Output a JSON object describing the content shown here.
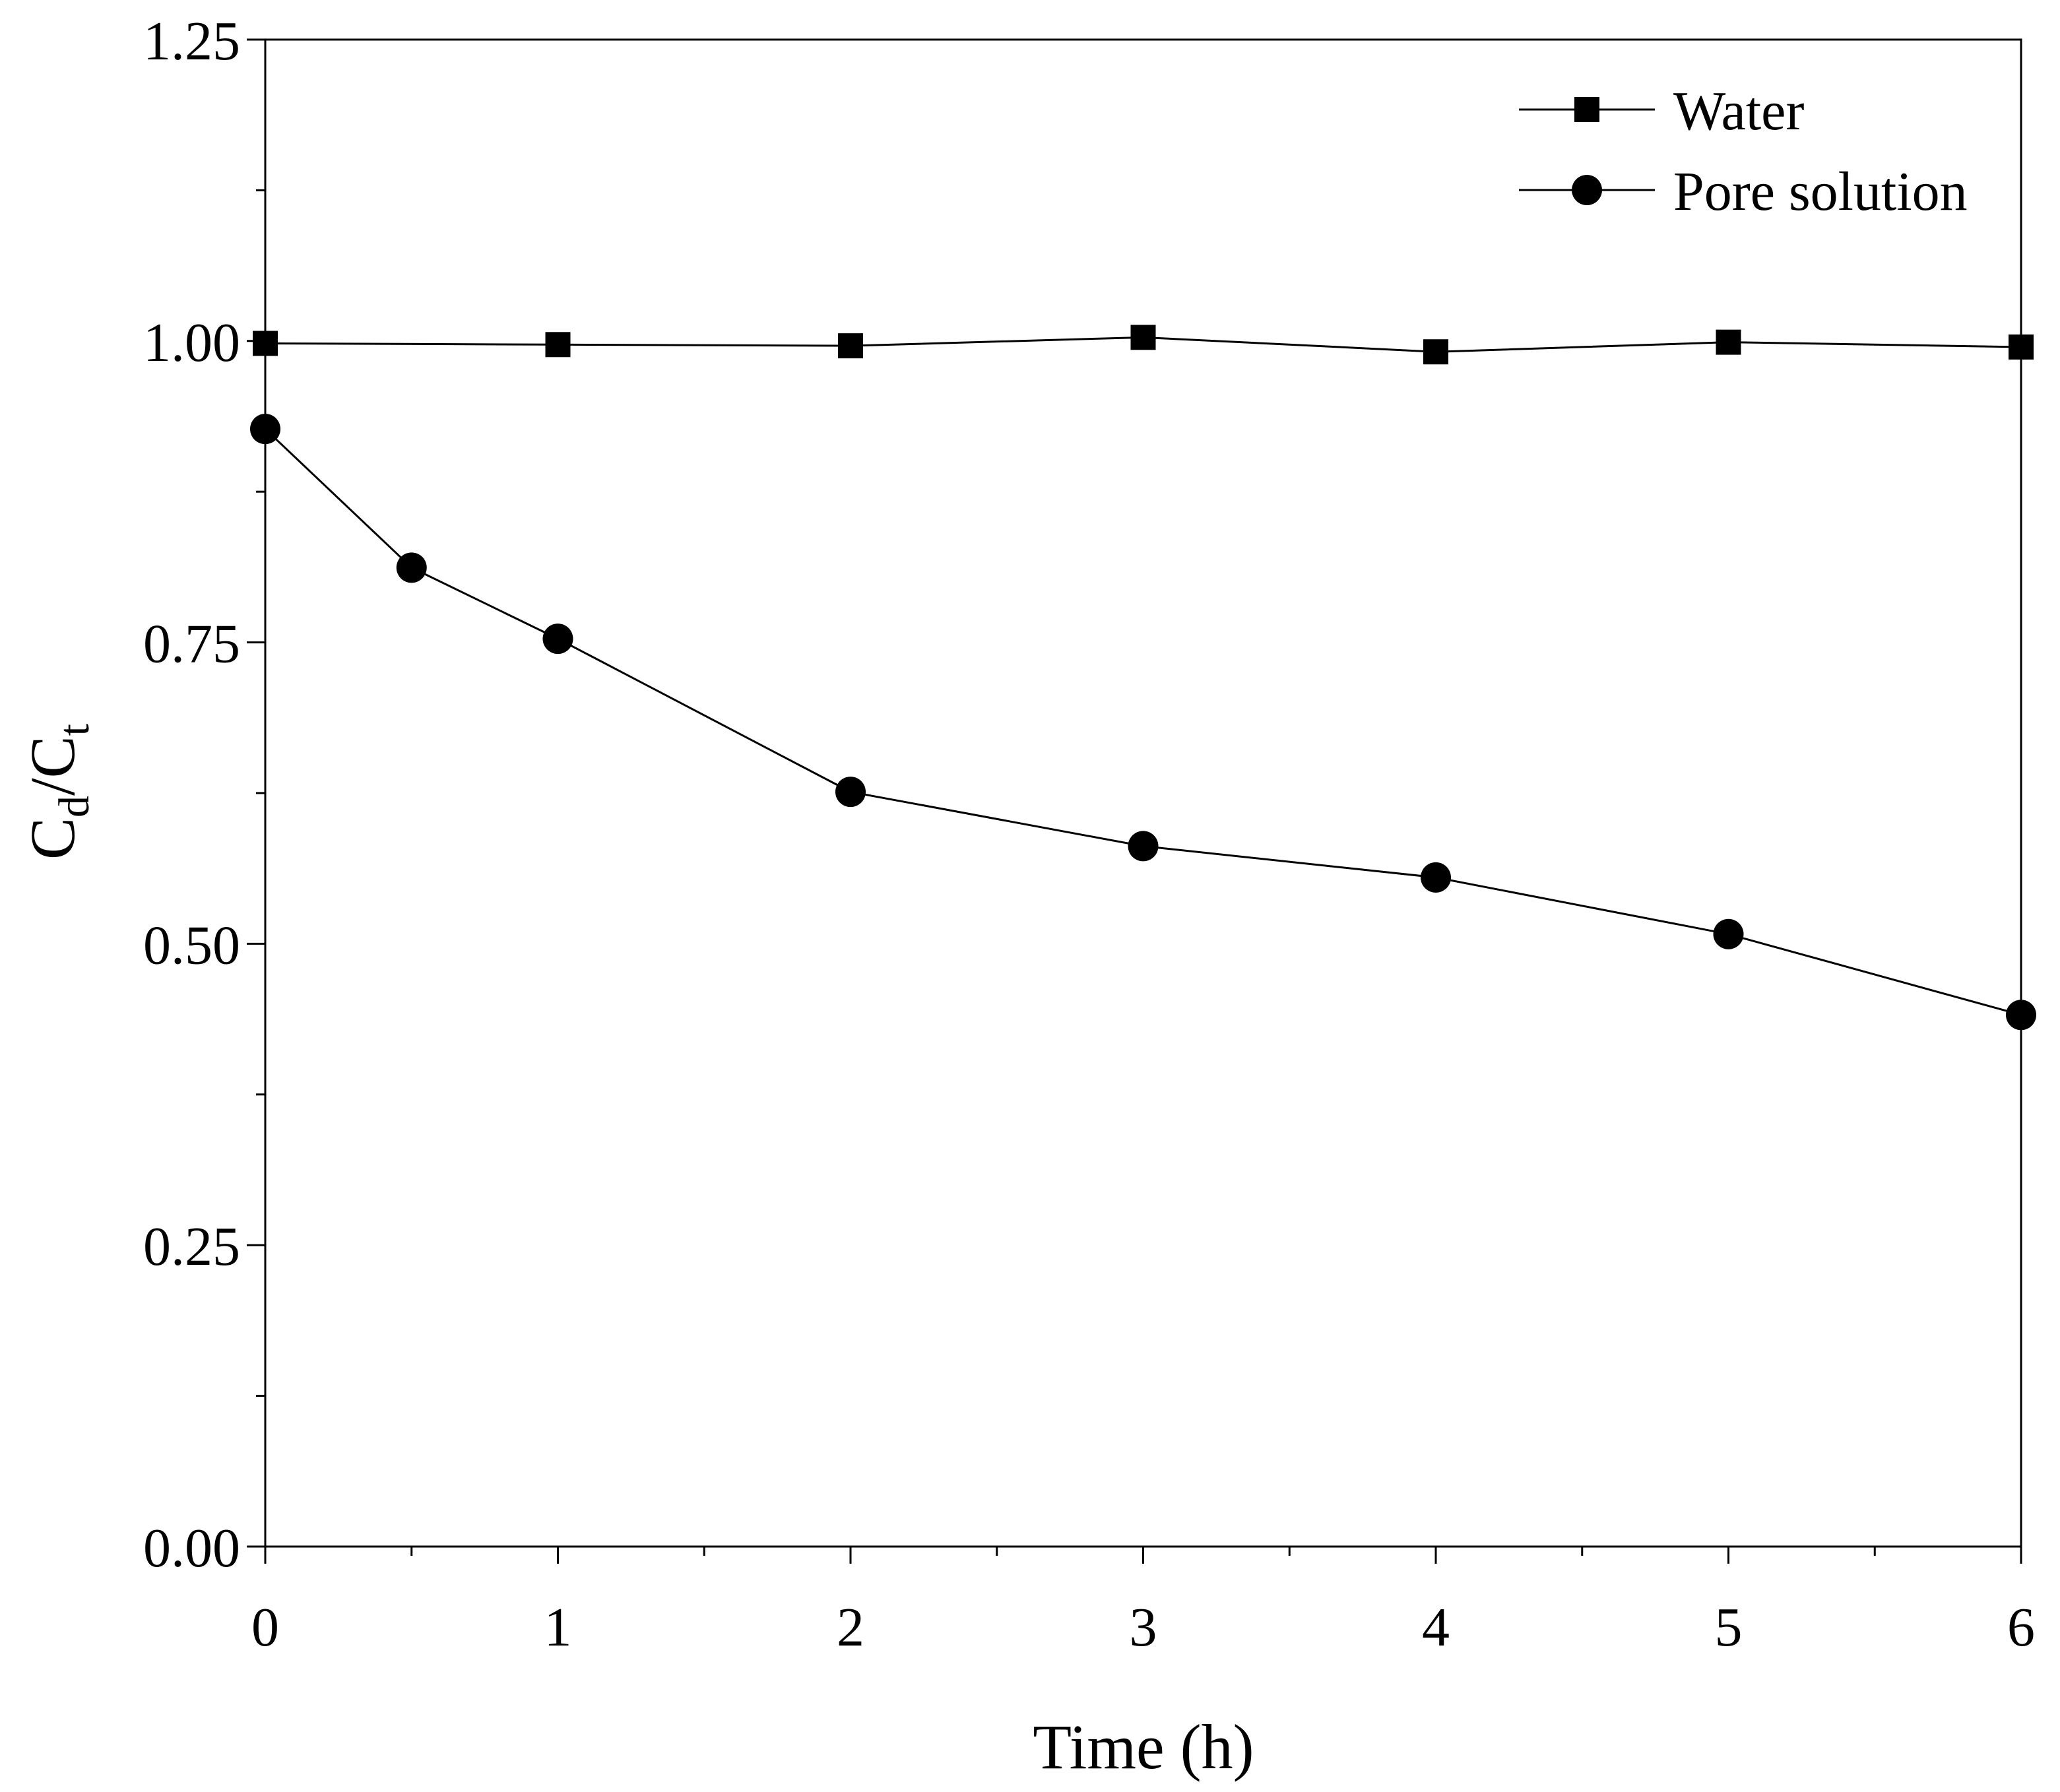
{
  "chart_data": {
    "type": "line",
    "title": "",
    "xlabel": "Time (h)",
    "ylabel": {
      "main": "C",
      "sub1": "d",
      "sep": "/",
      "main2": "C",
      "sub2": "t"
    },
    "xlim": [
      0,
      6
    ],
    "ylim": [
      0,
      1.25
    ],
    "xticks": [
      "0",
      "1",
      "2",
      "3",
      "4",
      "5",
      "6"
    ],
    "yticks": [
      "0.00",
      "0.25",
      "0.50",
      "0.75",
      "1.00",
      "1.25"
    ],
    "grid": false,
    "legend_position": "top-right",
    "series": [
      {
        "name": "Water",
        "marker": "square",
        "color": "#000000",
        "x": [
          0,
          1,
          2,
          3,
          4,
          5,
          6
        ],
        "y": [
          0.998,
          0.997,
          0.996,
          1.003,
          0.991,
          0.999,
          0.995
        ]
      },
      {
        "name": "Pore solution",
        "marker": "circle",
        "color": "#000000",
        "x": [
          0,
          0.5,
          1,
          2,
          3,
          4,
          5,
          6
        ],
        "y": [
          0.927,
          0.812,
          0.753,
          0.626,
          0.581,
          0.555,
          0.508,
          0.441
        ]
      }
    ]
  }
}
